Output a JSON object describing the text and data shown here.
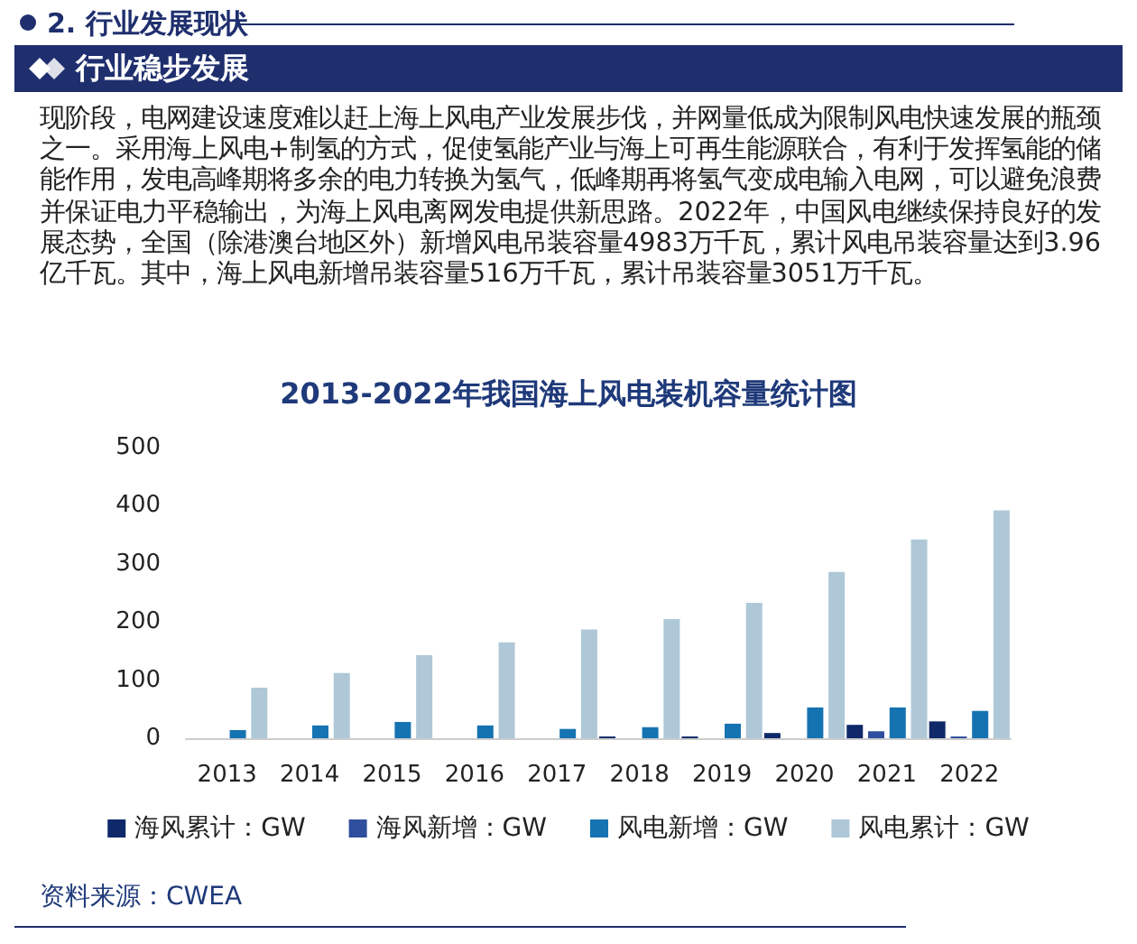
{
  "chart_data": {
    "type": "bar",
    "title": "2013-2022年我国海上风电装机容量统计图",
    "categories": [
      "2013",
      "2014",
      "2015",
      "2016",
      "2017",
      "2018",
      "2019",
      "2020",
      "2021",
      "2022"
    ],
    "series": [
      {
        "name": "海风累计：GW",
        "color": "#0f2869",
        "values": [
          0,
          0,
          0,
          0,
          0,
          3,
          3,
          9,
          23,
          29
        ]
      },
      {
        "name": "海风新增：GW",
        "color": "#2f4f9e",
        "values": [
          0,
          0,
          0,
          0,
          0,
          0,
          0,
          0,
          12,
          3
        ]
      },
      {
        "name": "风电新增：GW",
        "color": "#1673b1",
        "values": [
          14,
          22,
          28,
          22,
          16,
          19,
          25,
          53,
          53,
          47
        ]
      },
      {
        "name": "风电累计：GW",
        "color": "#aec8d8",
        "values": [
          87,
          112,
          143,
          165,
          187,
          205,
          233,
          286,
          342,
          392
        ]
      }
    ],
    "ylim": [
      0,
      500
    ],
    "yticks": [
      0,
      100,
      200,
      300,
      400,
      500
    ],
    "grid": false,
    "legend": "bottom",
    "annotations": [
      "2. 行业发展现状",
      "行业稳步发展",
      "现阶段，电网建设速度难以赶上海上风电产业发展步伐，并网量低成为限制风电快速发展的瓶颈之一。采用海上风电+制氢的方式，促使氢能产业与海上可再生能源联合，有利于发挥氢能的储能作用，发电高峰期将多余的电力转换为氢气，低峰期再将氢气变成电输入电网，可以避免浪费并保证电力平稳输出，为海上风电离网发电提供新思路。2022年，中国风电继续保持良好的发展态势，全国（除港澳台地区外）新增风电吊装容量4983万千瓦，累计风电吊装容量达到3.96亿千瓦。其中，海上风电新增吊装容量516万千瓦，累计吊装容量3051万千瓦。",
      "资料来源：CWEA"
    ]
  }
}
